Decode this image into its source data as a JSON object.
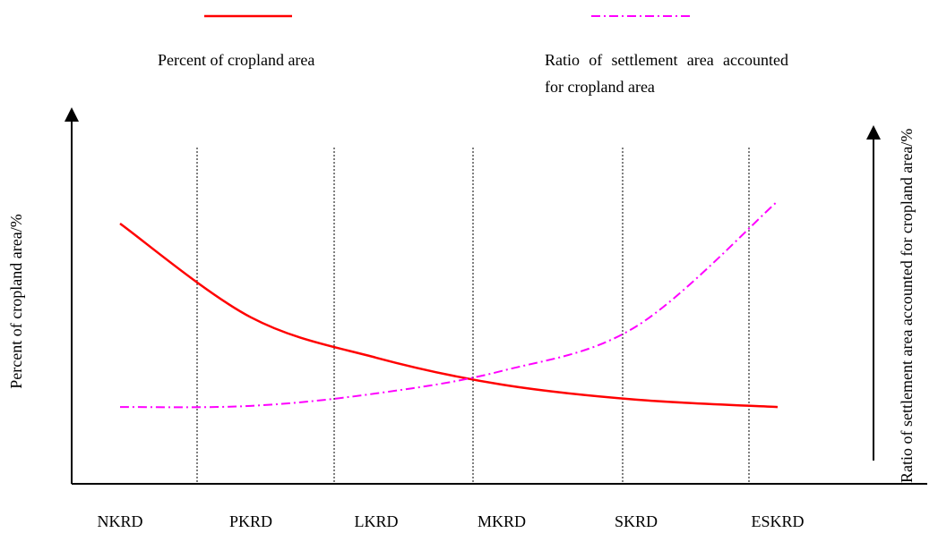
{
  "chart_data": {
    "type": "line",
    "categories": [
      "NKRD",
      "PKRD",
      "LKRD",
      "MKRD",
      "SKRD",
      "ESKRD"
    ],
    "y_label": "Percent of cropland area/%",
    "y2_label": "Ratio of settlement area accounted for cropland area/%",
    "ylim": [
      0,
      100
    ],
    "y2lim": [
      0,
      100
    ],
    "series": [
      {
        "name": "Percent of cropland area",
        "color": "#ff0000",
        "values": [
          70.8,
          45.3,
          34.3,
          27.0,
          22.9,
          20.9
        ]
      },
      {
        "name": "Ratio of settlement area accounted for cropland area",
        "color": "#ff00ff",
        "axis": "y2",
        "values": [
          20.9,
          21.2,
          24.6,
          30.7,
          42.8,
          76.9
        ]
      }
    ]
  }
}
